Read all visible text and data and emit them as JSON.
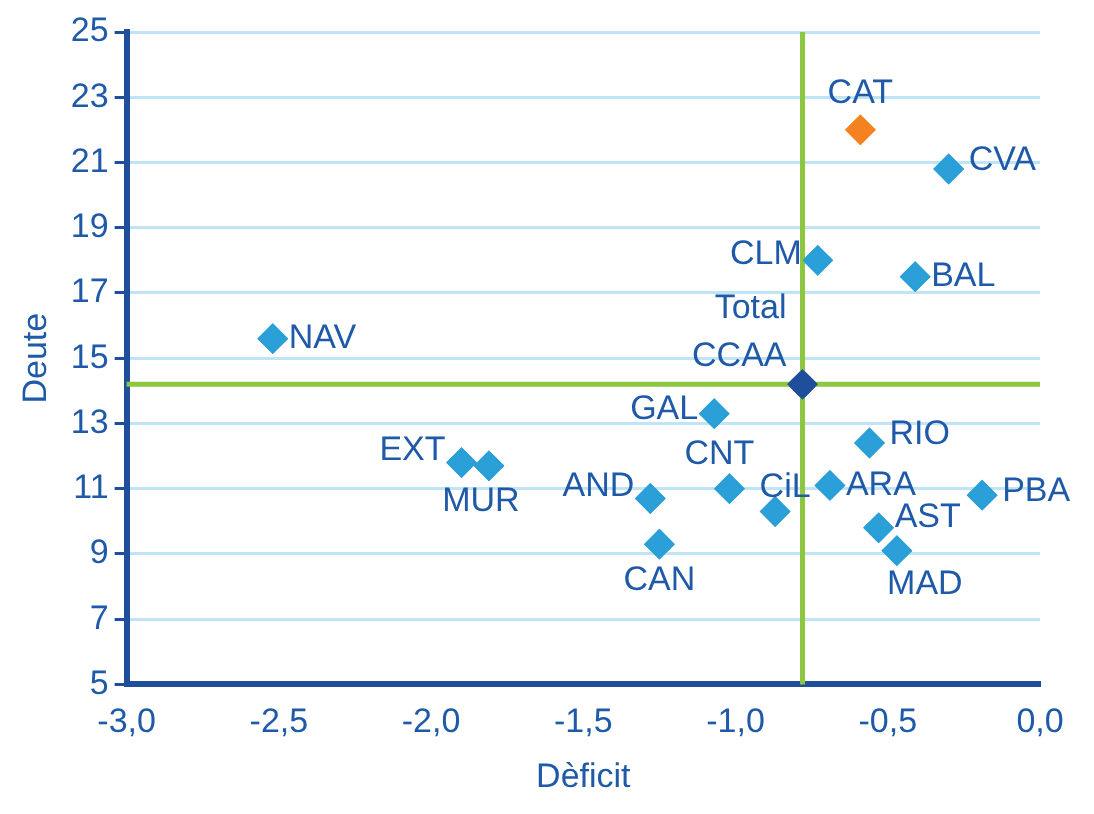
{
  "chart_data": {
    "type": "scatter",
    "xlabel": "Dèficit",
    "ylabel": "Deute",
    "x": [
      -2.52,
      -0.59,
      -0.3,
      -0.73,
      -0.41,
      -0.78,
      -1.07,
      -0.56,
      -1.9,
      -1.81,
      -1.28,
      -1.02,
      -0.87,
      -0.69,
      -0.19,
      -0.53,
      -0.47,
      -1.25
    ],
    "values": [
      15.6,
      22.0,
      20.8,
      18.0,
      17.5,
      14.2,
      13.3,
      12.4,
      11.8,
      11.7,
      10.7,
      11.0,
      10.3,
      11.1,
      10.8,
      9.8,
      9.1,
      9.3
    ],
    "colors": [
      "#2a9fd8",
      "#f58220",
      "#2a9fd8",
      "#2a9fd8",
      "#2a9fd8",
      "#1f4e9a",
      "#2a9fd8",
      "#2a9fd8",
      "#2a9fd8",
      "#2a9fd8",
      "#2a9fd8",
      "#2a9fd8",
      "#2a9fd8",
      "#2a9fd8",
      "#2a9fd8",
      "#2a9fd8",
      "#2a9fd8",
      "#2a9fd8"
    ],
    "marker": "diamond",
    "annotations": [
      {
        "text": "NAV",
        "x": -2.52,
        "y": 15.6
      },
      {
        "text": "CAT",
        "x": -0.59,
        "y": 22.0
      },
      {
        "text": "CVA",
        "x": -0.3,
        "y": 20.8
      },
      {
        "text": "CLM",
        "x": -0.73,
        "y": 18.0
      },
      {
        "text": "BAL",
        "x": -0.41,
        "y": 17.5
      },
      {
        "text": "Total CCAA",
        "x": -0.78,
        "y": 14.2
      },
      {
        "text": "GAL",
        "x": -1.07,
        "y": 13.3
      },
      {
        "text": "RIO",
        "x": -0.56,
        "y": 12.4
      },
      {
        "text": "EXT",
        "x": -1.9,
        "y": 11.8
      },
      {
        "text": "MUR",
        "x": -1.81,
        "y": 11.7
      },
      {
        "text": "AND",
        "x": -1.28,
        "y": 10.7
      },
      {
        "text": "CNT",
        "x": -1.02,
        "y": 11.0
      },
      {
        "text": "CiL",
        "x": -0.87,
        "y": 10.3
      },
      {
        "text": "ARA",
        "x": -0.69,
        "y": 11.1
      },
      {
        "text": "PBA",
        "x": -0.19,
        "y": 10.8
      },
      {
        "text": "AST",
        "x": -0.53,
        "y": 9.8
      },
      {
        "text": "MAD",
        "x": -0.47,
        "y": 9.1
      },
      {
        "text": "CAN",
        "x": -1.25,
        "y": 9.3
      }
    ],
    "ref_lines": [
      {
        "axis": "x",
        "value": -0.78,
        "color": "#8dc63f"
      },
      {
        "axis": "y",
        "value": 14.2,
        "color": "#8dc63f"
      }
    ],
    "xlim": [
      -3,
      0
    ],
    "xticks": [
      {
        "value": -3,
        "label": "-3,0"
      },
      {
        "value": -2.5,
        "label": "-2,5"
      },
      {
        "value": -2,
        "label": "-2,0"
      },
      {
        "value": -1.5,
        "label": "-1,5"
      },
      {
        "value": -1,
        "label": "-1,0"
      },
      {
        "value": -0.5,
        "label": "-0,5"
      },
      {
        "value": 0,
        "label": "0,0"
      }
    ],
    "ylim": [
      5,
      25
    ],
    "yticks": [
      5,
      7,
      9,
      11,
      13,
      15,
      17,
      19,
      21,
      23,
      25
    ],
    "grid": "y",
    "legend": false
  }
}
